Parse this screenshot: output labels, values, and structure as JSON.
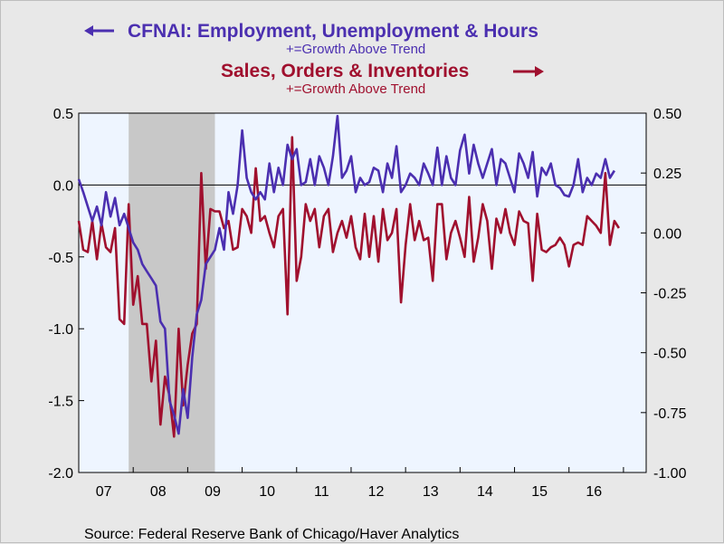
{
  "chart_data": {
    "type": "line",
    "title_left": "CFNAI: Employment, Unemployment & Hours",
    "subtitle_left": "+=Growth Above Trend",
    "title_right": "Sales, Orders & Inventories",
    "subtitle_right": "+=Growth Above Trend",
    "source": "Source:  Federal Reserve Bank of Chicago/Haver Analytics",
    "x_tick_labels": [
      "07",
      "08",
      "09",
      "10",
      "11",
      "12",
      "13",
      "14",
      "15",
      "16"
    ],
    "x_range": [
      "2007-01",
      "2017-06"
    ],
    "left_axis": {
      "ylim": [
        -2.0,
        0.5
      ],
      "tick_labels": [
        "0.5",
        "0.0",
        "-0.5",
        "-1.0",
        "-1.5",
        "-2.0"
      ]
    },
    "right_axis": {
      "ylim": [
        -1.0,
        0.5
      ],
      "tick_labels": [
        "0.50",
        "0.25",
        "0.00",
        "-0.25",
        "-0.50",
        "-0.75",
        "-1.00"
      ]
    },
    "recession_shading": {
      "start": "2007-12",
      "end": "2009-06",
      "color": "#c8c8c8"
    },
    "zero_line_left": 0.0,
    "colors": {
      "employment": "#4b2fb0",
      "sales": "#a0102e",
      "plot_bg": "#eef5ff",
      "page_bg": "#e8e8e8"
    },
    "series": [
      {
        "axis": "left",
        "start": "2007-01",
        "values": [
          0.04,
          -0.05,
          -0.15,
          -0.25,
          -0.15,
          -0.28,
          -0.05,
          -0.22,
          -0.09,
          -0.28,
          -0.2,
          -0.3,
          -0.4,
          -0.45,
          -0.55,
          -0.6,
          -0.65,
          -0.7,
          -0.95,
          -1.0,
          -1.5,
          -1.6,
          -1.73,
          -1.42,
          -1.62,
          -1.2,
          -0.9,
          -0.8,
          -0.55,
          -0.5,
          -0.45,
          -0.3,
          -0.45,
          -0.05,
          -0.2,
          0.0,
          0.38,
          0.05,
          -0.05,
          -0.1,
          -0.05,
          -0.1,
          0.15,
          -0.05,
          0.12,
          0.0,
          0.28,
          0.18,
          0.25,
          0.0,
          0.02,
          0.18,
          0.0,
          0.2,
          0.12,
          0.0,
          0.2,
          0.48,
          0.05,
          0.1,
          0.2,
          -0.05,
          0.05,
          0.0,
          0.02,
          0.12,
          0.1,
          -0.05,
          0.15,
          0.05,
          0.27,
          -0.05,
          0.0,
          0.08,
          0.05,
          0.0,
          0.15,
          0.08,
          0.0,
          0.26,
          0.0,
          0.2,
          0.05,
          0.0,
          0.24,
          0.35,
          0.08,
          0.28,
          0.15,
          0.05,
          0.15,
          0.25,
          0.0,
          0.18,
          0.15,
          0.05,
          -0.05,
          0.22,
          0.15,
          0.05,
          0.23,
          -0.08,
          0.12,
          0.07,
          0.15,
          0.0,
          -0.02,
          -0.07,
          -0.08,
          0.0,
          0.18,
          -0.05,
          0.05,
          0.0,
          0.08,
          0.05,
          0.18,
          0.05,
          0.1
        ]
      },
      {
        "axis": "right",
        "start": "2007-01",
        "values": [
          0.05,
          -0.07,
          -0.08,
          0.05,
          -0.11,
          0.04,
          -0.06,
          -0.08,
          0.02,
          -0.36,
          -0.38,
          0.12,
          -0.3,
          -0.18,
          -0.38,
          -0.38,
          -0.62,
          -0.45,
          -0.8,
          -0.6,
          -0.68,
          -0.85,
          -0.4,
          -0.72,
          -0.55,
          -0.42,
          -0.38,
          0.25,
          -0.15,
          0.1,
          0.09,
          0.09,
          0.02,
          0.05,
          -0.07,
          -0.06,
          0.1,
          0.07,
          0.0,
          0.27,
          0.05,
          0.07,
          0.0,
          -0.06,
          0.07,
          0.1,
          -0.34,
          0.4,
          -0.2,
          -0.1,
          0.12,
          0.05,
          0.1,
          -0.06,
          0.07,
          0.1,
          -0.08,
          0.0,
          0.05,
          -0.02,
          0.07,
          -0.06,
          -0.11,
          0.08,
          -0.1,
          0.07,
          -0.12,
          0.1,
          -0.03,
          0.0,
          0.1,
          -0.29,
          -0.05,
          0.12,
          -0.03,
          0.05,
          -0.03,
          -0.02,
          -0.2,
          0.12,
          0.12,
          -0.11,
          0.0,
          0.05,
          -0.02,
          -0.1,
          0.15,
          -0.12,
          -0.02,
          0.12,
          0.05,
          -0.15,
          0.06,
          0.0,
          0.1,
          0.0,
          -0.05,
          0.09,
          0.05,
          0.04,
          -0.2,
          0.08,
          -0.07,
          -0.08,
          -0.06,
          -0.05,
          -0.02,
          -0.05,
          -0.14,
          -0.05,
          -0.04,
          -0.05,
          0.07,
          0.05,
          0.03,
          0.0,
          0.25,
          -0.05,
          0.05,
          0.02
        ]
      }
    ]
  }
}
